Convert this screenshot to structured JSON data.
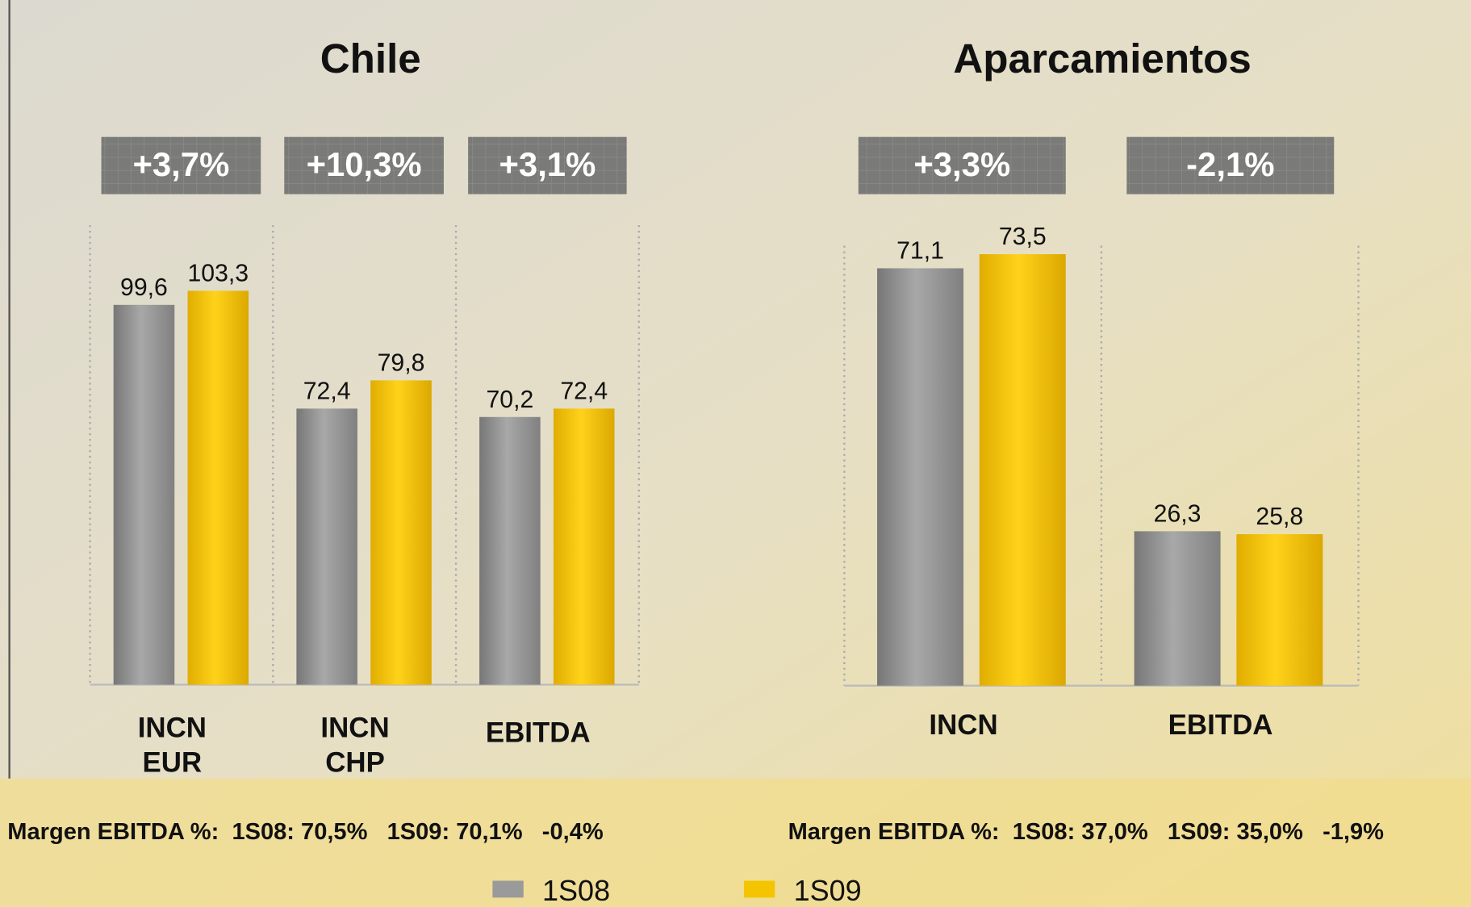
{
  "chart_data": [
    {
      "type": "bar",
      "title": "Chile",
      "categories": [
        "INCN EUR",
        "INCN CHP",
        "EBITDA"
      ],
      "annotations": [
        "+3,7%",
        "+10,3%",
        "+3,1%"
      ],
      "series": [
        {
          "name": "1S08",
          "color": "#9a9a9a",
          "values": [
            99.6,
            72.4,
            70.2
          ],
          "value_labels": [
            "99,6",
            "72,4",
            "70,2"
          ]
        },
        {
          "name": "1S09",
          "color": "#f5c400",
          "values": [
            103.3,
            79.8,
            72.4
          ],
          "value_labels": [
            "103,3",
            "79,8",
            "72,4"
          ]
        }
      ],
      "footnote": "Margen EBITDA %:  1S08: 70,5%   1S09: 70,1%   -0,4%"
    },
    {
      "type": "bar",
      "title": "Aparcamientos",
      "categories": [
        "INCN",
        "EBITDA"
      ],
      "annotations": [
        "+3,3%",
        "-2,1%"
      ],
      "series": [
        {
          "name": "1S08",
          "color": "#9a9a9a",
          "values": [
            71.1,
            26.3
          ],
          "value_labels": [
            "71,1",
            "26,3"
          ]
        },
        {
          "name": "1S09",
          "color": "#f5c400",
          "values": [
            73.5,
            25.8
          ],
          "value_labels": [
            "73,5",
            "25,8"
          ]
        }
      ],
      "footnote": "Margen EBITDA %:  1S08: 37,0%   1S09: 35,0%   -1,9%"
    }
  ]
}
